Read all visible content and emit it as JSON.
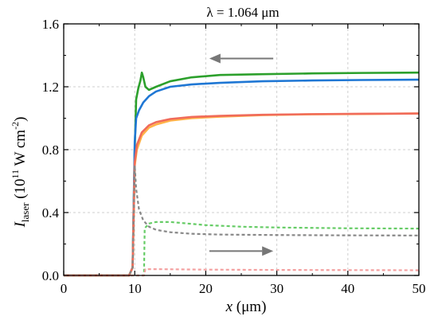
{
  "chart_data": {
    "type": "line",
    "title": "λ = 1.064 μm",
    "xlabel": {
      "var": "x",
      "unit": " (μm)"
    },
    "ylabel": {
      "var": "I",
      "sub": "laser",
      "pre": " (10",
      "sup1": "11",
      "mid": " W cm",
      "sup2": "-2",
      "post": ")"
    },
    "xlim": [
      0,
      50
    ],
    "ylim": [
      0,
      1.6
    ],
    "xticks": [
      "0",
      "10",
      "20",
      "30",
      "40",
      "50"
    ],
    "xtick_values": [
      0,
      10,
      20,
      30,
      40,
      50
    ],
    "yticks": [
      "0.0",
      "0.4",
      "0.8",
      "1.2",
      "1.6"
    ],
    "ytick_values": [
      0,
      0.4,
      0.8,
      1.2,
      1.6
    ],
    "grid": true,
    "annotations": [
      {
        "type": "arrow",
        "direction": "left",
        "x_from": 29.5,
        "x_to": 20.5,
        "y": 1.38,
        "color": "#777777"
      },
      {
        "type": "arrow",
        "direction": "right",
        "x_from": 20.5,
        "x_to": 29.5,
        "y": 0.155,
        "color": "#777777"
      }
    ],
    "series": [
      {
        "color": "#2ca02c",
        "style": "solid",
        "points": [
          [
            0,
            0
          ],
          [
            9.2,
            0
          ],
          [
            9.7,
            0.05
          ],
          [
            10.0,
            0.8
          ],
          [
            10.2,
            1.12
          ],
          [
            10.5,
            1.19
          ],
          [
            10.8,
            1.24
          ],
          [
            11.0,
            1.29
          ],
          [
            11.2,
            1.26
          ],
          [
            11.5,
            1.2
          ],
          [
            12,
            1.18
          ],
          [
            13,
            1.2
          ],
          [
            15,
            1.235
          ],
          [
            18,
            1.26
          ],
          [
            22,
            1.275
          ],
          [
            28,
            1.28
          ],
          [
            35,
            1.285
          ],
          [
            42,
            1.288
          ],
          [
            50,
            1.29
          ]
        ]
      },
      {
        "color": "#1f77d4",
        "style": "solid",
        "points": [
          [
            0,
            0
          ],
          [
            9.2,
            0
          ],
          [
            9.7,
            0.05
          ],
          [
            10.0,
            0.85
          ],
          [
            10.2,
            1.0
          ],
          [
            10.6,
            1.05
          ],
          [
            11.2,
            1.1
          ],
          [
            12,
            1.14
          ],
          [
            13,
            1.17
          ],
          [
            15,
            1.2
          ],
          [
            18,
            1.215
          ],
          [
            22,
            1.225
          ],
          [
            28,
            1.235
          ],
          [
            35,
            1.24
          ],
          [
            42,
            1.243
          ],
          [
            50,
            1.245
          ]
        ]
      },
      {
        "color": "#ffb347",
        "style": "solid",
        "points": [
          [
            0,
            0
          ],
          [
            9.2,
            0
          ],
          [
            9.7,
            0.05
          ],
          [
            10.0,
            0.7
          ],
          [
            10.3,
            0.8
          ],
          [
            11,
            0.89
          ],
          [
            12,
            0.94
          ],
          [
            13,
            0.96
          ],
          [
            15,
            0.985
          ],
          [
            18,
            1.0
          ],
          [
            22,
            1.01
          ],
          [
            28,
            1.02
          ],
          [
            35,
            1.025
          ],
          [
            42,
            1.027
          ],
          [
            50,
            1.03
          ]
        ]
      },
      {
        "color": "#f06b5a",
        "style": "solid",
        "points": [
          [
            0,
            0
          ],
          [
            9.2,
            0
          ],
          [
            9.7,
            0.05
          ],
          [
            10.0,
            0.72
          ],
          [
            10.3,
            0.83
          ],
          [
            11,
            0.91
          ],
          [
            12,
            0.955
          ],
          [
            13,
            0.975
          ],
          [
            15,
            0.995
          ],
          [
            18,
            1.008
          ],
          [
            22,
            1.015
          ],
          [
            28,
            1.022
          ],
          [
            35,
            1.026
          ],
          [
            42,
            1.028
          ],
          [
            50,
            1.03
          ]
        ]
      },
      {
        "color": "#888888",
        "style": "dashed",
        "points": [
          [
            0,
            0
          ],
          [
            9.2,
            0
          ],
          [
            9.7,
            0.05
          ],
          [
            10.0,
            0.7
          ],
          [
            10.2,
            0.55
          ],
          [
            10.6,
            0.42
          ],
          [
            11.2,
            0.35
          ],
          [
            12,
            0.31
          ],
          [
            13,
            0.29
          ],
          [
            15,
            0.275
          ],
          [
            18,
            0.265
          ],
          [
            22,
            0.26
          ],
          [
            30,
            0.257
          ],
          [
            40,
            0.255
          ],
          [
            50,
            0.254
          ]
        ]
      },
      {
        "color": "#66cc66",
        "style": "dashed",
        "points": [
          [
            0,
            0
          ],
          [
            11.3,
            0
          ],
          [
            11.4,
            0.3
          ],
          [
            12,
            0.33
          ],
          [
            13,
            0.34
          ],
          [
            15,
            0.34
          ],
          [
            20,
            0.32
          ],
          [
            25,
            0.31
          ],
          [
            30,
            0.305
          ],
          [
            40,
            0.3
          ],
          [
            50,
            0.298
          ]
        ]
      },
      {
        "color": "#f4a0a0",
        "style": "dashed",
        "points": [
          [
            0,
            0
          ],
          [
            11.3,
            0
          ],
          [
            11.5,
            0.04
          ],
          [
            13,
            0.04
          ],
          [
            20,
            0.037
          ],
          [
            30,
            0.035
          ],
          [
            40,
            0.034
          ],
          [
            50,
            0.033
          ]
        ]
      }
    ]
  }
}
